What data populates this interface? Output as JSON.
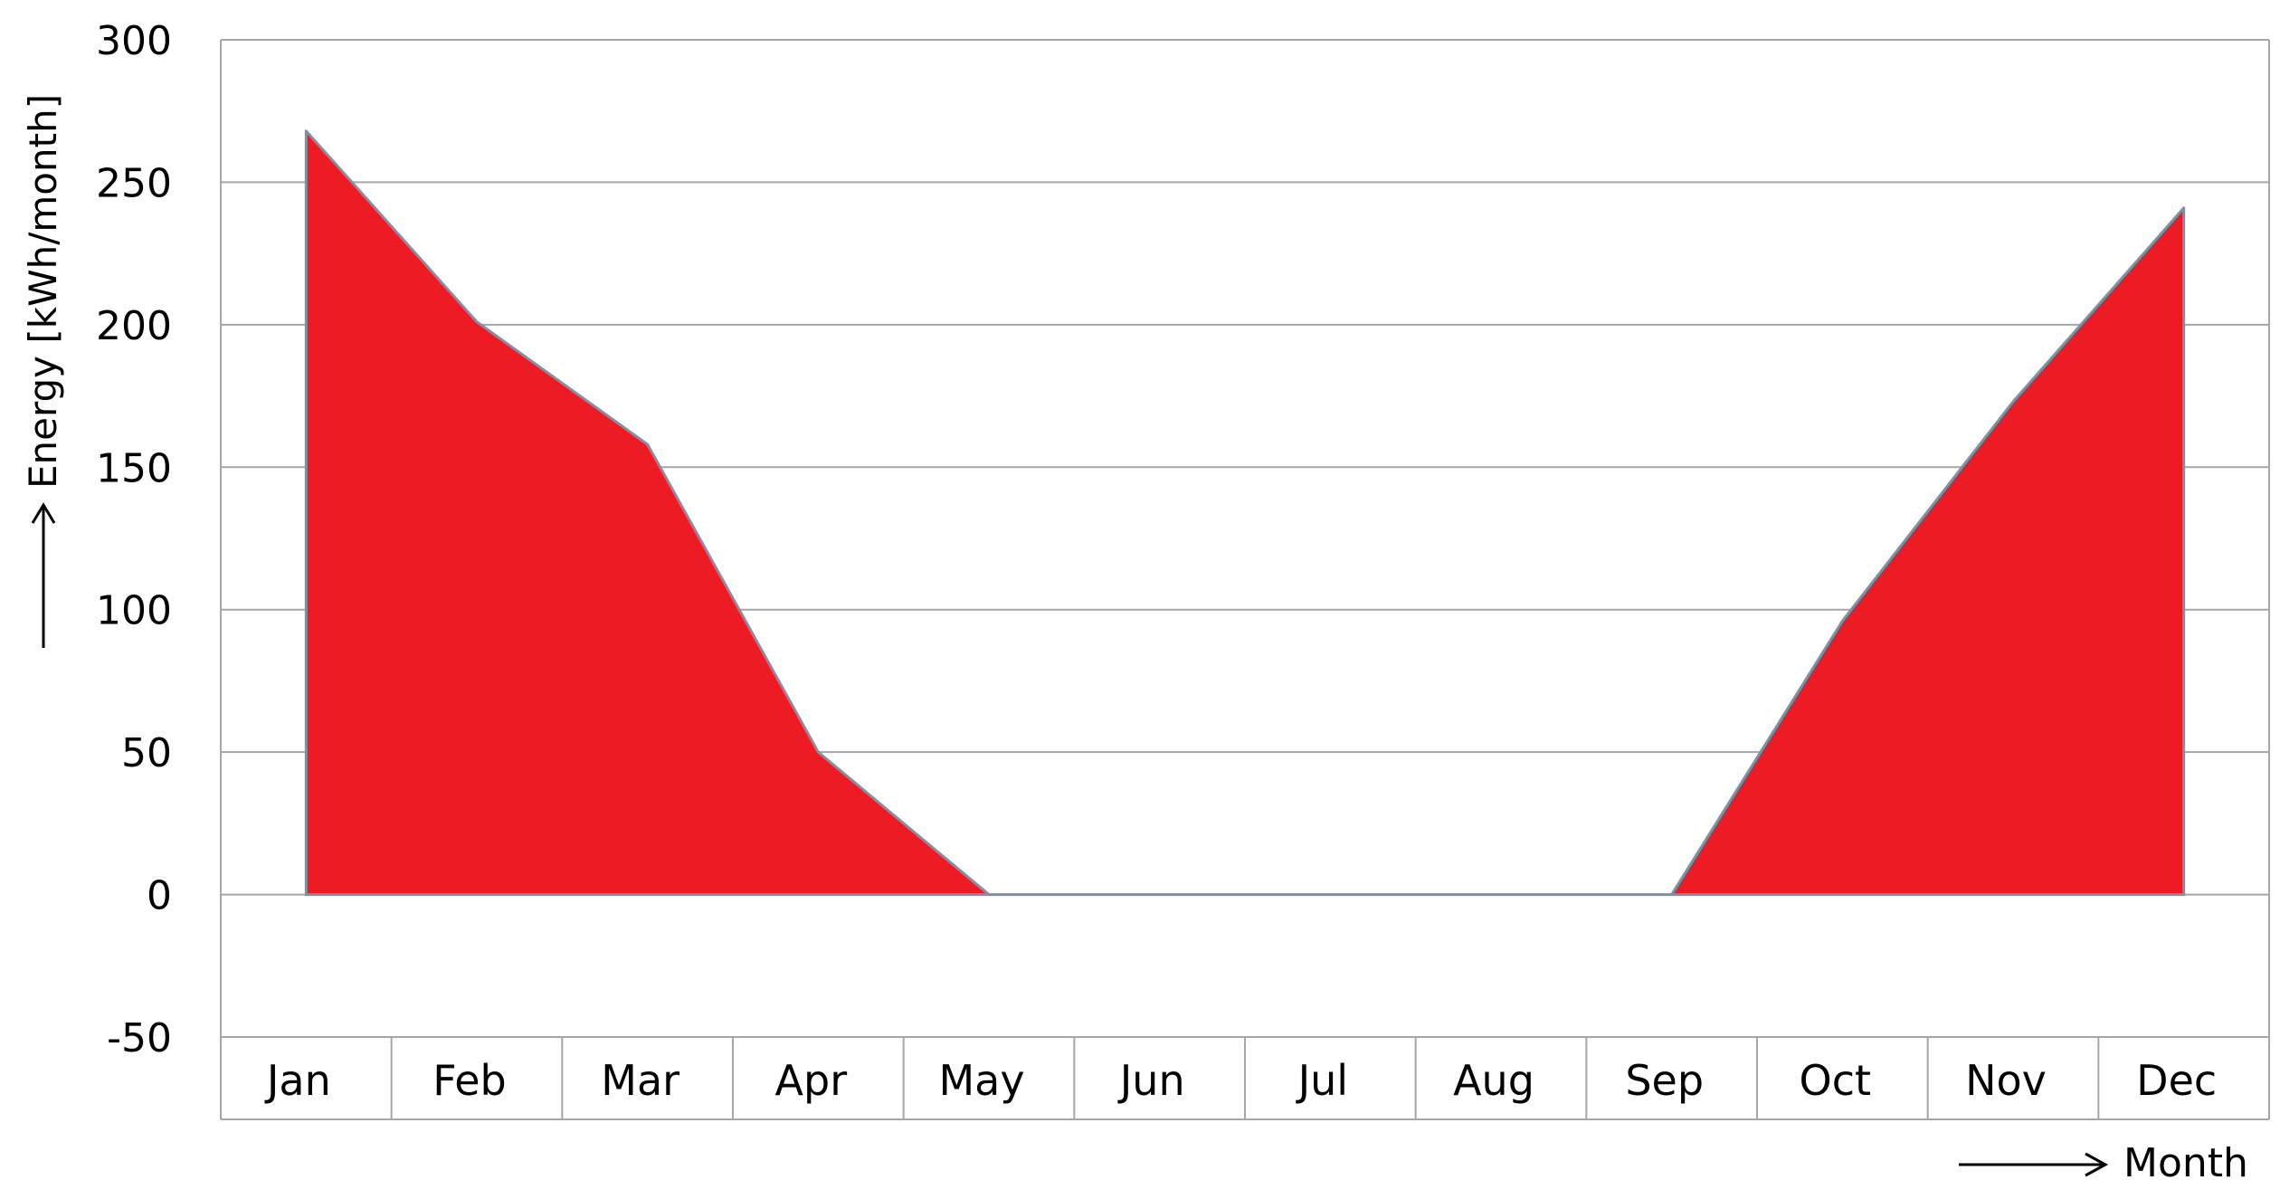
{
  "chart_data": {
    "type": "area",
    "title": "",
    "xlabel": "Month",
    "ylabel": "Energy [kWh/month]",
    "categories": [
      "Jan",
      "Feb",
      "Mar",
      "Apr",
      "May",
      "Jun",
      "Jul",
      "Aug",
      "Sep",
      "Oct",
      "Nov",
      "Dec"
    ],
    "series": [
      {
        "values": [
          268,
          201,
          158,
          50,
          0,
          0,
          0,
          0,
          0,
          96,
          173,
          241
        ]
      }
    ],
    "ylim": [
      -50,
      300
    ],
    "yticks": [
      300,
      250,
      200,
      150,
      100,
      50,
      0,
      -50
    ],
    "grid": true,
    "legend": "none",
    "colors": {
      "fill": "#ed1c24",
      "stroke": "#7f8fa6",
      "grid": "#a6a6a6",
      "text": "#000000"
    }
  }
}
